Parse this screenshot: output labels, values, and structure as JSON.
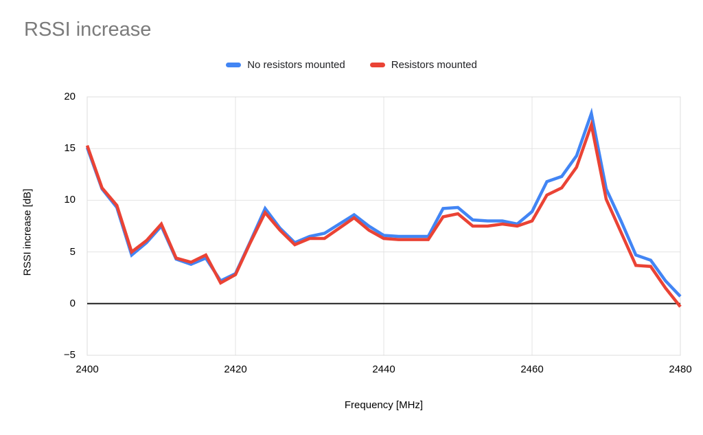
{
  "chart_data": {
    "type": "line",
    "title": "RSSI increase",
    "xlabel": "Frequency [MHz]",
    "ylabel": "RSSI increase [dB]",
    "legend_position": "top",
    "grid": true,
    "xlim": [
      2400,
      2480
    ],
    "ylim": [
      -5,
      20
    ],
    "xticks": [
      2400,
      2420,
      2440,
      2460,
      2480
    ],
    "yticks": [
      20,
      15,
      10,
      5,
      0,
      -5
    ],
    "x": [
      2400,
      2402,
      2404,
      2406,
      2408,
      2410,
      2412,
      2414,
      2416,
      2418,
      2420,
      2422,
      2424,
      2426,
      2428,
      2430,
      2432,
      2434,
      2436,
      2438,
      2440,
      2442,
      2444,
      2446,
      2448,
      2450,
      2452,
      2454,
      2456,
      2458,
      2460,
      2462,
      2464,
      2466,
      2468,
      2470,
      2472,
      2474,
      2476,
      2478,
      2480
    ],
    "series": [
      {
        "name": "No resistors mounted",
        "color": "#4285F4",
        "values": [
          15.1,
          11.1,
          9.3,
          4.7,
          5.9,
          7.5,
          4.3,
          3.8,
          4.4,
          2.2,
          2.9,
          6.0,
          9.2,
          7.3,
          5.9,
          6.5,
          6.8,
          7.7,
          8.6,
          7.5,
          6.6,
          6.5,
          6.5,
          6.5,
          9.2,
          9.3,
          8.1,
          8.0,
          8.0,
          7.7,
          8.9,
          11.8,
          12.3,
          14.3,
          18.4,
          11.1,
          8.0,
          4.7,
          4.2,
          2.2,
          0.7
        ]
      },
      {
        "name": "Resistors mounted",
        "color": "#EA4335",
        "values": [
          15.3,
          11.2,
          9.5,
          5.0,
          6.1,
          7.7,
          4.4,
          4.0,
          4.7,
          2.0,
          2.8,
          5.9,
          8.8,
          7.1,
          5.7,
          6.3,
          6.3,
          7.3,
          8.3,
          7.1,
          6.3,
          6.2,
          6.2,
          6.2,
          8.4,
          8.7,
          7.5,
          7.5,
          7.7,
          7.5,
          8.0,
          10.5,
          11.2,
          13.2,
          17.3,
          10.1,
          6.9,
          3.7,
          3.6,
          1.5,
          -0.3
        ]
      }
    ]
  },
  "colors": {
    "background": "#ffffff",
    "title_text": "#7b7b7b",
    "axis_text": "#000000",
    "legend_text": "#202124",
    "gridline": "#e3e3e3",
    "plot_border": "#dcdcdc",
    "zero_line": "#1f1f1f"
  }
}
